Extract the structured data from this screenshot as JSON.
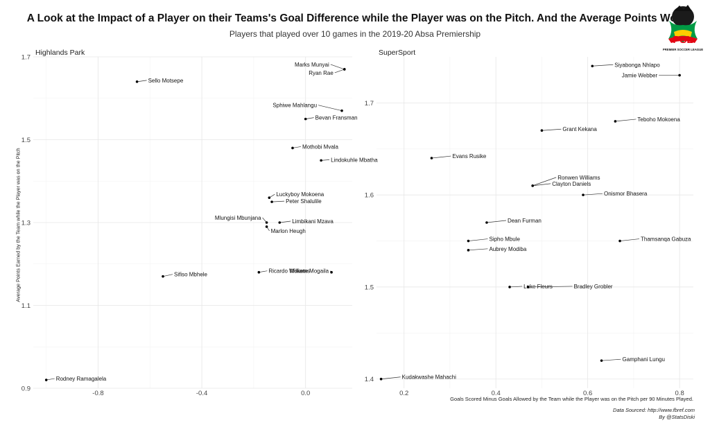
{
  "title": "A Look at the Impact of a Player on their Teams's Goal Difference while the Player was on the Pitch. And the Average Points Won",
  "subtitle": "Players that played over 10 games in the 2019-20 Absa Premiership",
  "logo": {
    "text": "PSL",
    "caption": "PREMIER SOCCER LEAGUE",
    "colors": [
      "#e30613",
      "#009a44",
      "#ffcc00",
      "#1d4f91"
    ]
  },
  "source": {
    "line1": "Data Sourced: http://www.fbref.com",
    "line2": "By @StatsDiski"
  },
  "chart_data": [
    {
      "type": "scatter",
      "facet": "Highlands Park",
      "ylabel": "Average Points Earned by the Team while the Player was on the Pitch",
      "xlim": [
        -1.05,
        0.18
      ],
      "ylim": [
        0.9,
        1.7
      ],
      "xticks": [
        -0.8,
        -0.4,
        0.0
      ],
      "xtick_labels": [
        "-0.8",
        "-0.4",
        "0.0"
      ],
      "yticks": [
        0.9,
        1.1,
        1.3,
        1.5,
        1.7
      ],
      "ytick_labels": [
        "0.9",
        "1.1",
        "1.3",
        "1.5",
        "1.7"
      ],
      "grid": true,
      "points": [
        {
          "name": "Sello Motsepe",
          "x": -0.65,
          "y": 1.64
        },
        {
          "name": "Marks Munyai",
          "x": 0.15,
          "y": 1.67
        },
        {
          "name": "Ryan Rae",
          "x": 0.15,
          "y": 1.67
        },
        {
          "name": "Sphiwe Mahlangu",
          "x": 0.14,
          "y": 1.57
        },
        {
          "name": "Bevan Fransman",
          "x": 0.0,
          "y": 1.55
        },
        {
          "name": "Mothobi Mvala",
          "x": -0.05,
          "y": 1.48
        },
        {
          "name": "Lindokuhle Mbatha",
          "x": 0.06,
          "y": 1.45
        },
        {
          "name": "Luckyboy Mokoena",
          "x": -0.14,
          "y": 1.36
        },
        {
          "name": "Peter Shalulile",
          "x": -0.13,
          "y": 1.35
        },
        {
          "name": "Mlungisi Mbunjana",
          "x": -0.15,
          "y": 1.3
        },
        {
          "name": "Limbikani Mzava",
          "x": -0.1,
          "y": 1.3
        },
        {
          "name": "Marlon Heugh",
          "x": -0.15,
          "y": 1.29
        },
        {
          "name": "Ricardo Williams",
          "x": -0.18,
          "y": 1.18
        },
        {
          "name": "Mokete Mogaila",
          "x": 0.1,
          "y": 1.18
        },
        {
          "name": "Sifiso Mbhele",
          "x": -0.55,
          "y": 1.17
        },
        {
          "name": "Rodney Ramagalela",
          "x": -1.0,
          "y": 0.92
        }
      ]
    },
    {
      "type": "scatter",
      "facet": "SuperSport",
      "xlabel": "Goals Scored Minus Goals Allowed by the Team while the Player was on the Pitch per 90 Minutes Played.",
      "xlim": [
        0.14,
        0.83
      ],
      "ylim": [
        1.39,
        1.75
      ],
      "xticks": [
        0.2,
        0.4,
        0.6,
        0.8
      ],
      "xtick_labels": [
        "0.2",
        "0.4",
        "0.6",
        "0.8"
      ],
      "yticks": [
        1.4,
        1.5,
        1.6,
        1.7
      ],
      "ytick_labels": [
        "1.4",
        "1.5",
        "1.6",
        "1.7"
      ],
      "grid": true,
      "points": [
        {
          "name": "Siyabonga Nhlapo",
          "x": 0.61,
          "y": 1.74
        },
        {
          "name": "Jamie Webber",
          "x": 0.8,
          "y": 1.73
        },
        {
          "name": "Teboho Mokoena",
          "x": 0.66,
          "y": 1.68
        },
        {
          "name": "Grant Kekana",
          "x": 0.5,
          "y": 1.67
        },
        {
          "name": "Evans Rusike",
          "x": 0.26,
          "y": 1.64
        },
        {
          "name": "Ronwen Williams",
          "x": 0.48,
          "y": 1.61
        },
        {
          "name": "Clayton Daniels",
          "x": 0.48,
          "y": 1.61
        },
        {
          "name": "Onismor Bhasera",
          "x": 0.59,
          "y": 1.6
        },
        {
          "name": "Dean Furman",
          "x": 0.38,
          "y": 1.57
        },
        {
          "name": "Sipho Mbule",
          "x": 0.34,
          "y": 1.55
        },
        {
          "name": "Thamsanqa Gabuza",
          "x": 0.67,
          "y": 1.55
        },
        {
          "name": "Aubrey Modiba",
          "x": 0.34,
          "y": 1.54
        },
        {
          "name": "Luke Fleurs",
          "x": 0.43,
          "y": 1.5
        },
        {
          "name": "Bradley Grobler",
          "x": 0.47,
          "y": 1.5
        },
        {
          "name": "Gamphani Lungu",
          "x": 0.63,
          "y": 1.42
        },
        {
          "name": "Kudakwashe Mahachi",
          "x": 0.15,
          "y": 1.4
        }
      ]
    }
  ]
}
